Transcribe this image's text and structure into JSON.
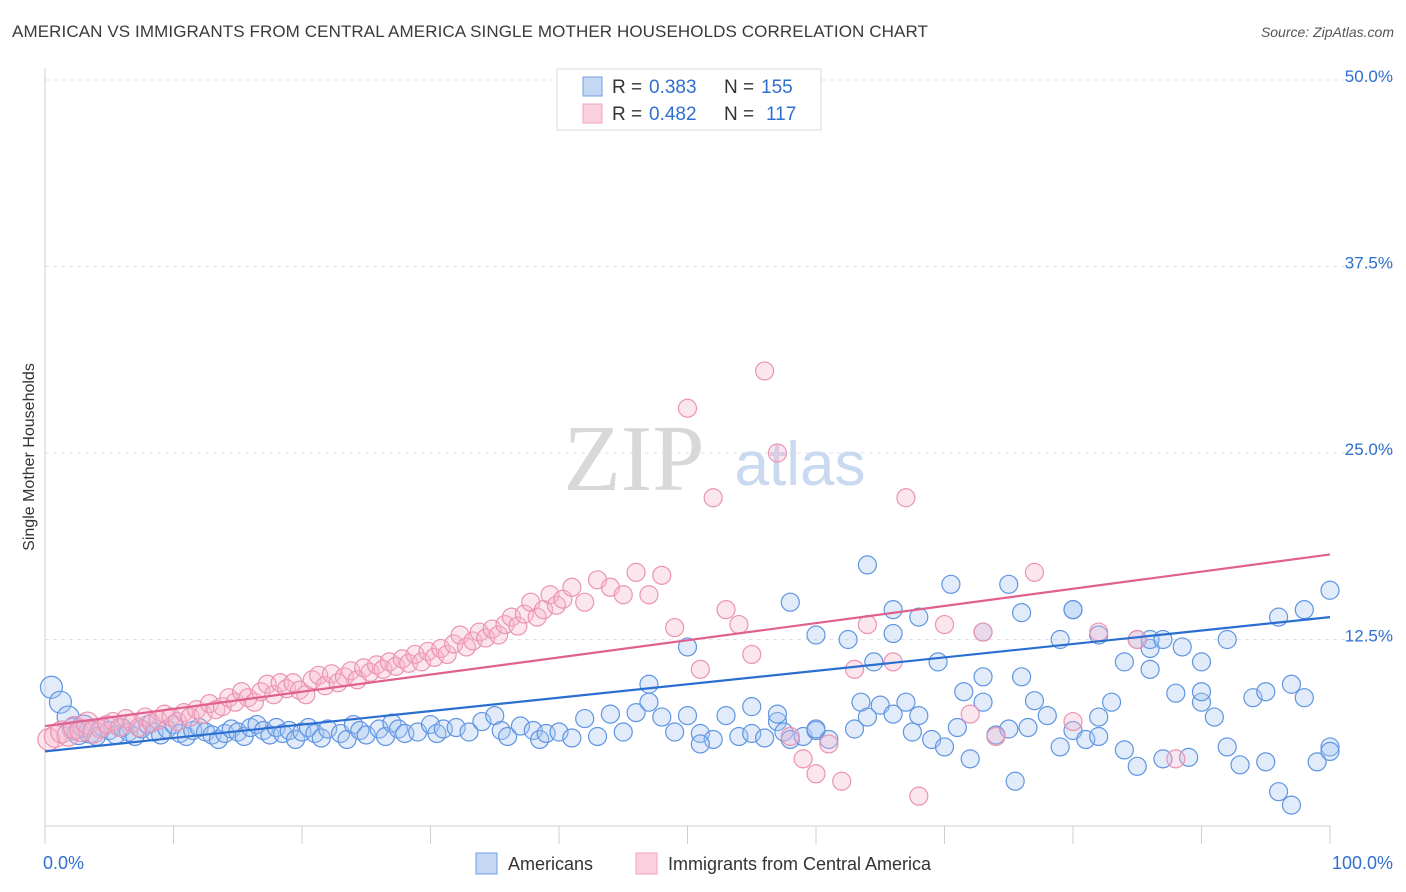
{
  "header": {
    "title": "AMERICAN VS IMMIGRANTS FROM CENTRAL AMERICA SINGLE MOTHER HOUSEHOLDS CORRELATION CHART",
    "source": "Source: ZipAtlas.com"
  },
  "watermark": {
    "zip": "ZIP",
    "atlas": "atlas"
  },
  "legend_top": {
    "r_label": "R =",
    "n_label": "N =",
    "rows": [
      {
        "r": "0.383",
        "n": "155"
      },
      {
        "r": "0.482",
        "n": "117"
      }
    ]
  },
  "chart_data": {
    "type": "scatter",
    "title": "AMERICAN VS IMMIGRANTS FROM CENTRAL AMERICA SINGLE MOTHER HOUSEHOLDS CORRELATION CHART",
    "ylabel": "Single Mother Households",
    "xlabel": "",
    "xlim": [
      0,
      100
    ],
    "ylim": [
      0,
      52
    ],
    "x_tick_labels": [
      "0.0%",
      "100.0%"
    ],
    "y_ticks": [
      12.5,
      25.0,
      37.5,
      50.0
    ],
    "y_tick_labels": [
      "12.5%",
      "25.0%",
      "37.5%",
      "50.0%"
    ],
    "grid": "horizontal dashed",
    "legend_position": "bottom-center",
    "colors": {
      "americans": "#6fa0e6",
      "americans_line": "#2a6fd0",
      "immigrants": "#f2a2bd",
      "immigrants_line": "#e0608f",
      "value_text": "#2f6fce"
    },
    "series": [
      {
        "name": "Americans",
        "r": 0.383,
        "n": 155,
        "trend": {
          "x": [
            0,
            100
          ],
          "y": [
            5.0,
            14.0
          ]
        },
        "points": [
          [
            0.5,
            9.3
          ],
          [
            1.2,
            8.3
          ],
          [
            1.8,
            7.3
          ],
          [
            2.2,
            6.5
          ],
          [
            2.6,
            6.2
          ],
          [
            3.0,
            6.7
          ],
          [
            3.5,
            6.3
          ],
          [
            4.0,
            6.0
          ],
          [
            4.5,
            6.6
          ],
          [
            5.0,
            6.4
          ],
          [
            5.5,
            6.1
          ],
          [
            6.0,
            6.6
          ],
          [
            6.5,
            6.3
          ],
          [
            7.0,
            6.0
          ],
          [
            7.5,
            6.5
          ],
          [
            8.0,
            6.8
          ],
          [
            8.5,
            6.3
          ],
          [
            9.0,
            6.1
          ],
          [
            9.5,
            6.5
          ],
          [
            10.0,
            6.8
          ],
          [
            10.5,
            6.2
          ],
          [
            11.0,
            6.0
          ],
          [
            11.5,
            6.4
          ],
          [
            12.0,
            6.6
          ],
          [
            12.5,
            6.3
          ],
          [
            13.0,
            6.1
          ],
          [
            13.5,
            5.8
          ],
          [
            14.0,
            6.2
          ],
          [
            14.5,
            6.5
          ],
          [
            15.0,
            6.3
          ],
          [
            15.5,
            6.0
          ],
          [
            16.0,
            6.6
          ],
          [
            16.5,
            6.8
          ],
          [
            17.0,
            6.4
          ],
          [
            17.5,
            6.1
          ],
          [
            18.0,
            6.6
          ],
          [
            18.5,
            6.2
          ],
          [
            19.0,
            6.4
          ],
          [
            19.5,
            5.8
          ],
          [
            20.0,
            6.3
          ],
          [
            20.5,
            6.6
          ],
          [
            21.0,
            6.2
          ],
          [
            21.5,
            5.9
          ],
          [
            22.0,
            6.5
          ],
          [
            23.0,
            6.2
          ],
          [
            23.5,
            5.8
          ],
          [
            24.0,
            6.8
          ],
          [
            24.5,
            6.4
          ],
          [
            25.0,
            6.1
          ],
          [
            26.0,
            6.5
          ],
          [
            26.5,
            6.0
          ],
          [
            27.0,
            6.9
          ],
          [
            27.5,
            6.5
          ],
          [
            28.0,
            6.2
          ],
          [
            29.0,
            6.3
          ],
          [
            30.0,
            6.8
          ],
          [
            30.5,
            6.2
          ],
          [
            31.0,
            6.5
          ],
          [
            32.0,
            6.6
          ],
          [
            33.0,
            6.3
          ],
          [
            34.0,
            7.0
          ],
          [
            35.0,
            7.4
          ],
          [
            35.5,
            6.4
          ],
          [
            36.0,
            6.0
          ],
          [
            37.0,
            6.7
          ],
          [
            38.0,
            6.4
          ],
          [
            38.5,
            5.8
          ],
          [
            39.0,
            6.2
          ],
          [
            40.0,
            6.3
          ],
          [
            41.0,
            5.9
          ],
          [
            42.0,
            7.2
          ],
          [
            43.0,
            6.0
          ],
          [
            44.0,
            7.5
          ],
          [
            45.0,
            6.3
          ],
          [
            46.0,
            7.6
          ],
          [
            47.0,
            8.3
          ],
          [
            48.0,
            7.3
          ],
          [
            49.0,
            6.3
          ],
          [
            50.0,
            7.4
          ],
          [
            51.0,
            6.2
          ],
          [
            52.0,
            5.8
          ],
          [
            53.0,
            7.4
          ],
          [
            54.0,
            6.0
          ],
          [
            55.0,
            6.2
          ],
          [
            56.0,
            5.9
          ],
          [
            57.0,
            7.0
          ],
          [
            57.5,
            6.3
          ],
          [
            58.0,
            5.8
          ],
          [
            59.0,
            6.0
          ],
          [
            60.0,
            6.4
          ],
          [
            61.0,
            5.8
          ],
          [
            63.0,
            6.5
          ],
          [
            63.5,
            8.3
          ],
          [
            64.0,
            7.3
          ],
          [
            65.0,
            8.1
          ],
          [
            66.0,
            7.5
          ],
          [
            67.0,
            8.3
          ],
          [
            67.5,
            6.3
          ],
          [
            68.0,
            7.4
          ],
          [
            69.0,
            5.8
          ],
          [
            70.0,
            5.3
          ],
          [
            71.0,
            6.6
          ],
          [
            72.0,
            4.5
          ],
          [
            73.0,
            8.3
          ],
          [
            74.0,
            6.1
          ],
          [
            75.0,
            6.5
          ],
          [
            75.5,
            3.0
          ],
          [
            76.5,
            6.6
          ],
          [
            77.0,
            8.4
          ],
          [
            78.0,
            7.4
          ],
          [
            79.0,
            5.3
          ],
          [
            80.0,
            6.4
          ],
          [
            81.0,
            5.8
          ],
          [
            82.0,
            7.3
          ],
          [
            83.0,
            8.3
          ],
          [
            84.0,
            5.1
          ],
          [
            85.0,
            4.0
          ],
          [
            86.0,
            11.9
          ],
          [
            87.0,
            4.5
          ],
          [
            88.0,
            8.9
          ],
          [
            89.0,
            4.6
          ],
          [
            90.0,
            8.3
          ],
          [
            91.0,
            7.3
          ],
          [
            92.0,
            5.3
          ],
          [
            93.0,
            4.1
          ],
          [
            94.0,
            8.6
          ],
          [
            95.0,
            4.3
          ],
          [
            96.0,
            2.3
          ],
          [
            97.0,
            1.4
          ],
          [
            98.0,
            8.6
          ],
          [
            99.0,
            4.3
          ],
          [
            100.0,
            5.3
          ],
          [
            51.0,
            5.5
          ],
          [
            47.0,
            9.5
          ],
          [
            50.0,
            12.0
          ],
          [
            55.0,
            8.0
          ],
          [
            57.0,
            7.5
          ],
          [
            60.0,
            6.5
          ],
          [
            62.5,
            12.5
          ],
          [
            64.5,
            11.0
          ],
          [
            66.0,
            14.5
          ],
          [
            69.5,
            11.0
          ],
          [
            71.5,
            9.0
          ],
          [
            73.0,
            10.0
          ],
          [
            76.0,
            10.0
          ],
          [
            79.0,
            12.5
          ],
          [
            80.0,
            14.5
          ],
          [
            82.0,
            6.0
          ],
          [
            84.0,
            11.0
          ],
          [
            85.0,
            12.5
          ],
          [
            86.0,
            10.5
          ],
          [
            88.5,
            12.0
          ],
          [
            90.0,
            9.0
          ],
          [
            95.0,
            9.0
          ],
          [
            97.0,
            9.5
          ],
          [
            100.0,
            5.0
          ],
          [
            58.0,
            15.0
          ],
          [
            60.0,
            12.8
          ],
          [
            64.0,
            17.5
          ],
          [
            66.0,
            12.9
          ],
          [
            68.0,
            14.0
          ],
          [
            70.5,
            16.2
          ],
          [
            73.0,
            13.0
          ],
          [
            75.0,
            16.2
          ],
          [
            76.0,
            14.3
          ],
          [
            80.0,
            14.5
          ],
          [
            82.0,
            12.8
          ],
          [
            86.0,
            12.5
          ],
          [
            87.0,
            12.5
          ],
          [
            90.0,
            11.0
          ],
          [
            92.0,
            12.5
          ],
          [
            96.0,
            14.0
          ],
          [
            98.0,
            14.5
          ],
          [
            100.0,
            15.8
          ]
        ]
      },
      {
        "name": "Immigrants from Central America",
        "r": 0.482,
        "n": 117,
        "trend": {
          "x": [
            0,
            100
          ],
          "y": [
            6.7,
            18.2
          ]
        },
        "points": [
          [
            0.3,
            5.8
          ],
          [
            0.8,
            6.0
          ],
          [
            1.3,
            6.3
          ],
          [
            1.8,
            6.1
          ],
          [
            2.3,
            6.6
          ],
          [
            2.8,
            6.4
          ],
          [
            3.3,
            6.9
          ],
          [
            3.8,
            6.3
          ],
          [
            4.3,
            6.5
          ],
          [
            4.8,
            6.8
          ],
          [
            5.3,
            7.0
          ],
          [
            5.8,
            6.6
          ],
          [
            6.3,
            7.2
          ],
          [
            6.8,
            6.9
          ],
          [
            7.3,
            6.6
          ],
          [
            7.8,
            7.3
          ],
          [
            8.3,
            6.9
          ],
          [
            8.8,
            7.1
          ],
          [
            9.3,
            7.5
          ],
          [
            9.8,
            7.3
          ],
          [
            10.3,
            7.0
          ],
          [
            10.8,
            7.6
          ],
          [
            11.3,
            7.3
          ],
          [
            11.8,
            7.8
          ],
          [
            12.3,
            7.5
          ],
          [
            12.8,
            8.2
          ],
          [
            13.3,
            7.8
          ],
          [
            13.8,
            8.0
          ],
          [
            14.3,
            8.6
          ],
          [
            14.8,
            8.3
          ],
          [
            15.3,
            9.0
          ],
          [
            15.8,
            8.6
          ],
          [
            16.3,
            8.3
          ],
          [
            16.8,
            9.0
          ],
          [
            17.3,
            9.5
          ],
          [
            17.8,
            8.8
          ],
          [
            18.3,
            9.6
          ],
          [
            18.8,
            9.2
          ],
          [
            19.3,
            9.6
          ],
          [
            19.8,
            9.1
          ],
          [
            20.3,
            8.8
          ],
          [
            20.8,
            9.8
          ],
          [
            21.3,
            10.1
          ],
          [
            21.8,
            9.4
          ],
          [
            22.3,
            10.2
          ],
          [
            22.8,
            9.6
          ],
          [
            23.3,
            10.0
          ],
          [
            23.8,
            10.4
          ],
          [
            24.3,
            9.8
          ],
          [
            24.8,
            10.6
          ],
          [
            25.3,
            10.3
          ],
          [
            25.8,
            10.8
          ],
          [
            26.3,
            10.5
          ],
          [
            26.8,
            11.0
          ],
          [
            27.3,
            10.7
          ],
          [
            27.8,
            11.2
          ],
          [
            28.3,
            10.9
          ],
          [
            28.8,
            11.5
          ],
          [
            29.3,
            11.0
          ],
          [
            29.8,
            11.7
          ],
          [
            30.3,
            11.3
          ],
          [
            30.8,
            11.9
          ],
          [
            31.3,
            11.5
          ],
          [
            31.8,
            12.2
          ],
          [
            32.3,
            12.8
          ],
          [
            32.8,
            12.0
          ],
          [
            33.3,
            12.4
          ],
          [
            33.8,
            13.0
          ],
          [
            34.3,
            12.6
          ],
          [
            34.8,
            13.2
          ],
          [
            35.3,
            12.8
          ],
          [
            35.8,
            13.5
          ],
          [
            36.3,
            14.0
          ],
          [
            36.8,
            13.4
          ],
          [
            37.3,
            14.2
          ],
          [
            37.8,
            15.0
          ],
          [
            38.3,
            14.0
          ],
          [
            38.8,
            14.5
          ],
          [
            39.3,
            15.5
          ],
          [
            39.8,
            14.8
          ],
          [
            40.3,
            15.2
          ],
          [
            41.0,
            16.0
          ],
          [
            42.0,
            15.0
          ],
          [
            43.0,
            16.5
          ],
          [
            44.0,
            16.0
          ],
          [
            45.0,
            15.5
          ],
          [
            46.0,
            17.0
          ],
          [
            47.0,
            15.5
          ],
          [
            48.0,
            16.8
          ],
          [
            49.0,
            13.3
          ],
          [
            50.0,
            28.0
          ],
          [
            51.0,
            10.5
          ],
          [
            52.0,
            22.0
          ],
          [
            53.0,
            14.5
          ],
          [
            54.0,
            13.5
          ],
          [
            55.0,
            11.5
          ],
          [
            56.0,
            30.5
          ],
          [
            57.0,
            25.0
          ],
          [
            58.0,
            6.0
          ],
          [
            59.0,
            4.5
          ],
          [
            60.0,
            3.5
          ],
          [
            61.0,
            5.5
          ],
          [
            62.0,
            3.0
          ],
          [
            63.0,
            10.5
          ],
          [
            64.0,
            13.5
          ],
          [
            66.0,
            11.0
          ],
          [
            67.0,
            22.0
          ],
          [
            68.0,
            2.0
          ],
          [
            70.0,
            13.5
          ],
          [
            72.0,
            7.5
          ],
          [
            73.0,
            13.0
          ],
          [
            74.0,
            6.0
          ],
          [
            77.0,
            17.0
          ],
          [
            80.0,
            7.0
          ],
          [
            82.0,
            13.0
          ],
          [
            85.0,
            12.5
          ],
          [
            88.0,
            4.5
          ]
        ]
      }
    ]
  },
  "legend_bottom": [
    {
      "label": "Americans"
    },
    {
      "label": "Immigrants from Central America"
    }
  ]
}
